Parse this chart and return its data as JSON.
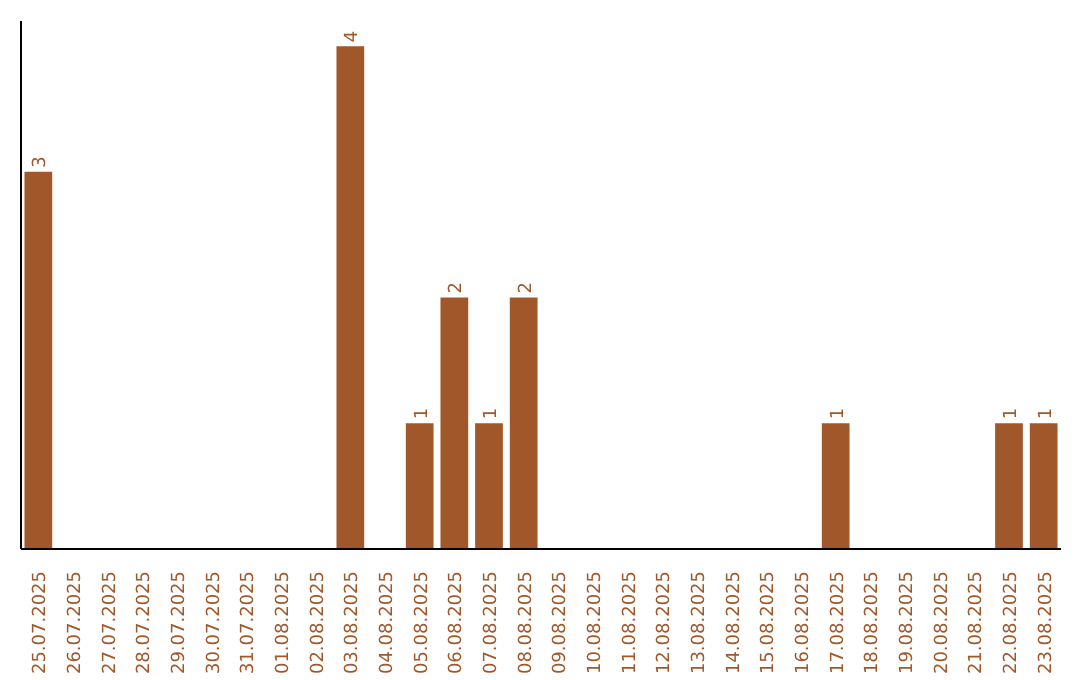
{
  "chart_data": {
    "type": "bar",
    "categories": [
      "25.07.2025",
      "26.07.2025",
      "27.07.2025",
      "28.07.2025",
      "29.07.2025",
      "30.07.2025",
      "31.07.2025",
      "01.08.2025",
      "02.08.2025",
      "03.08.2025",
      "04.08.2025",
      "05.08.2025",
      "06.08.2025",
      "07.08.2025",
      "08.08.2025",
      "09.08.2025",
      "10.08.2025",
      "11.08.2025",
      "12.08.2025",
      "13.08.2025",
      "14.08.2025",
      "15.08.2025",
      "16.08.2025",
      "17.08.2025",
      "18.08.2025",
      "19.08.2025",
      "20.08.2025",
      "21.08.2025",
      "22.08.2025",
      "23.08.2025"
    ],
    "values": [
      3,
      0,
      0,
      0,
      0,
      0,
      0,
      0,
      0,
      4,
      0,
      1,
      2,
      1,
      2,
      0,
      0,
      0,
      0,
      0,
      0,
      0,
      0,
      1,
      0,
      0,
      0,
      0,
      1,
      1
    ],
    "color": "#a0582a",
    "ylim": [
      0,
      4.2
    ],
    "value_labels": [
      "3",
      null,
      null,
      null,
      null,
      null,
      null,
      null,
      null,
      "4",
      null,
      "1",
      "2",
      "1",
      "2",
      null,
      null,
      null,
      null,
      null,
      null,
      null,
      null,
      "1",
      null,
      null,
      null,
      null,
      "1",
      "1"
    ],
    "tick_labels": "x",
    "grid": false
  }
}
